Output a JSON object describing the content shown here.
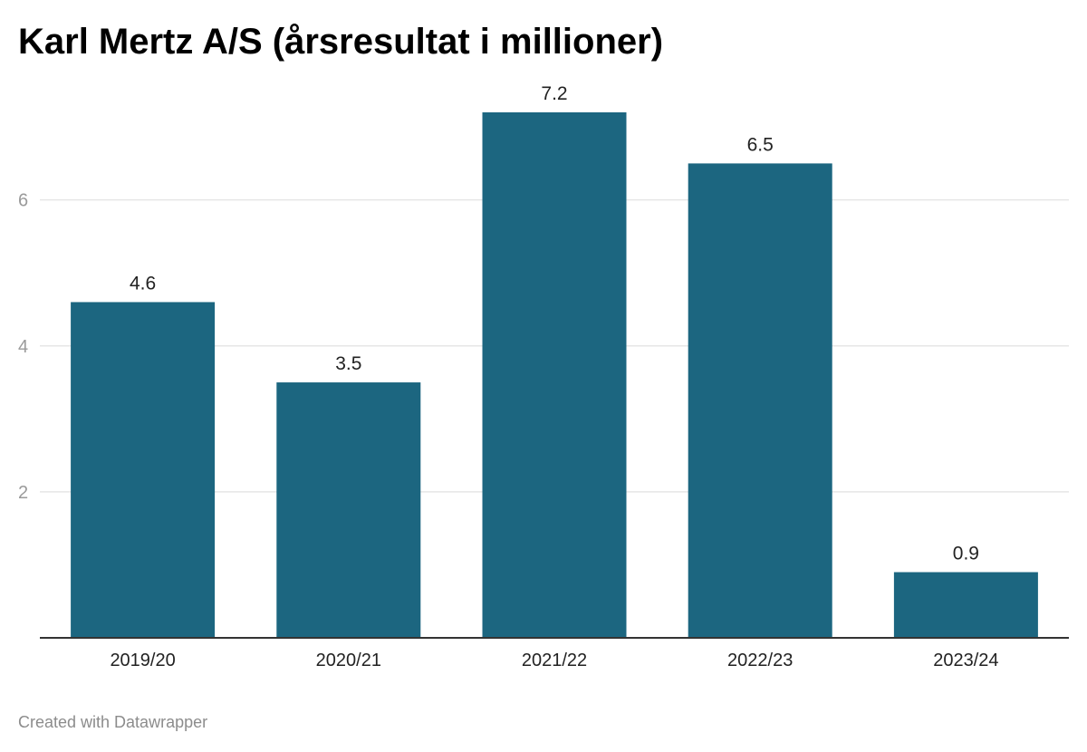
{
  "chart_data": {
    "type": "bar",
    "title": "Karl Mertz A/S (årsresultat i millioner)",
    "categories": [
      "2019/20",
      "2020/21",
      "2021/22",
      "2022/23",
      "2023/24"
    ],
    "values": [
      4.6,
      3.5,
      7.2,
      6.5,
      0.9
    ],
    "value_labels": [
      "4.6",
      "3.5",
      "7.2",
      "6.5",
      "0.9"
    ],
    "y_ticks": [
      2,
      4,
      6
    ],
    "ylim": [
      0,
      7.2
    ],
    "xlabel": "",
    "ylabel": "",
    "grid": true,
    "legend": "none",
    "bar_color": "#1c6680",
    "gridline_color": "#e6e6e6",
    "baseline_color": "#333333"
  },
  "footer": {
    "credit": "Created with Datawrapper"
  }
}
